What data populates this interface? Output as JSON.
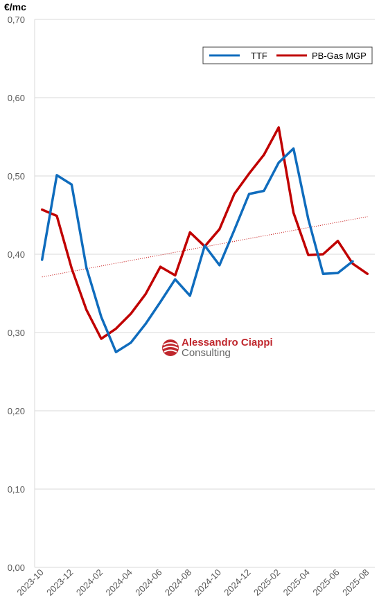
{
  "chart_data": {
    "type": "line",
    "ylabel": "€/mc",
    "ylim": [
      0,
      0.7
    ],
    "yticks": [
      "0,00",
      "0,10",
      "0,20",
      "0,30",
      "0,40",
      "0,50",
      "0,60",
      "0,70"
    ],
    "ytick_values": [
      0,
      0.1,
      0.2,
      0.3,
      0.4,
      0.5,
      0.6,
      0.7
    ],
    "grid": "horizontal",
    "legend_position": "top-right",
    "x": [
      "2023-10",
      "2023-11",
      "2023-12",
      "2024-01",
      "2024-02",
      "2024-03",
      "2024-04",
      "2024-05",
      "2024-06",
      "2024-07",
      "2024-08",
      "2024-09",
      "2024-10",
      "2024-11",
      "2024-12",
      "2025-01",
      "2025-02",
      "2025-03",
      "2025-04",
      "2025-05",
      "2025-06",
      "2025-07",
      "2025-08"
    ],
    "xtick_labels": [
      "2023-10",
      "2023-12",
      "2024-02",
      "2024-04",
      "2024-06",
      "2024-08",
      "2024-10",
      "2024-12",
      "2025-02",
      "2025-04",
      "2025-06",
      "2025-08"
    ],
    "series": [
      {
        "name": "TTF",
        "color": "#0f6cbd",
        "values": [
          0.393,
          0.501,
          0.489,
          0.383,
          0.32,
          0.275,
          0.287,
          0.311,
          0.339,
          0.368,
          0.347,
          0.411,
          0.386,
          0.431,
          0.477,
          0.481,
          0.517,
          0.535,
          0.445,
          0.375,
          0.376,
          0.391,
          null
        ]
      },
      {
        "name": "PB-Gas MGP",
        "color": "#c00000",
        "values": [
          0.457,
          0.449,
          0.382,
          0.329,
          0.292,
          0.305,
          0.324,
          0.349,
          0.384,
          0.373,
          0.428,
          0.41,
          0.432,
          0.477,
          0.503,
          0.527,
          0.562,
          0.453,
          0.399,
          0.4,
          0.417,
          0.388,
          0.375
        ]
      }
    ],
    "trendline": {
      "style": "dotted",
      "color": "#c00000",
      "values": [
        0.371,
        0.448
      ]
    }
  },
  "logo": {
    "line1": "Alessandro Ciappi",
    "line2": "Consulting"
  }
}
